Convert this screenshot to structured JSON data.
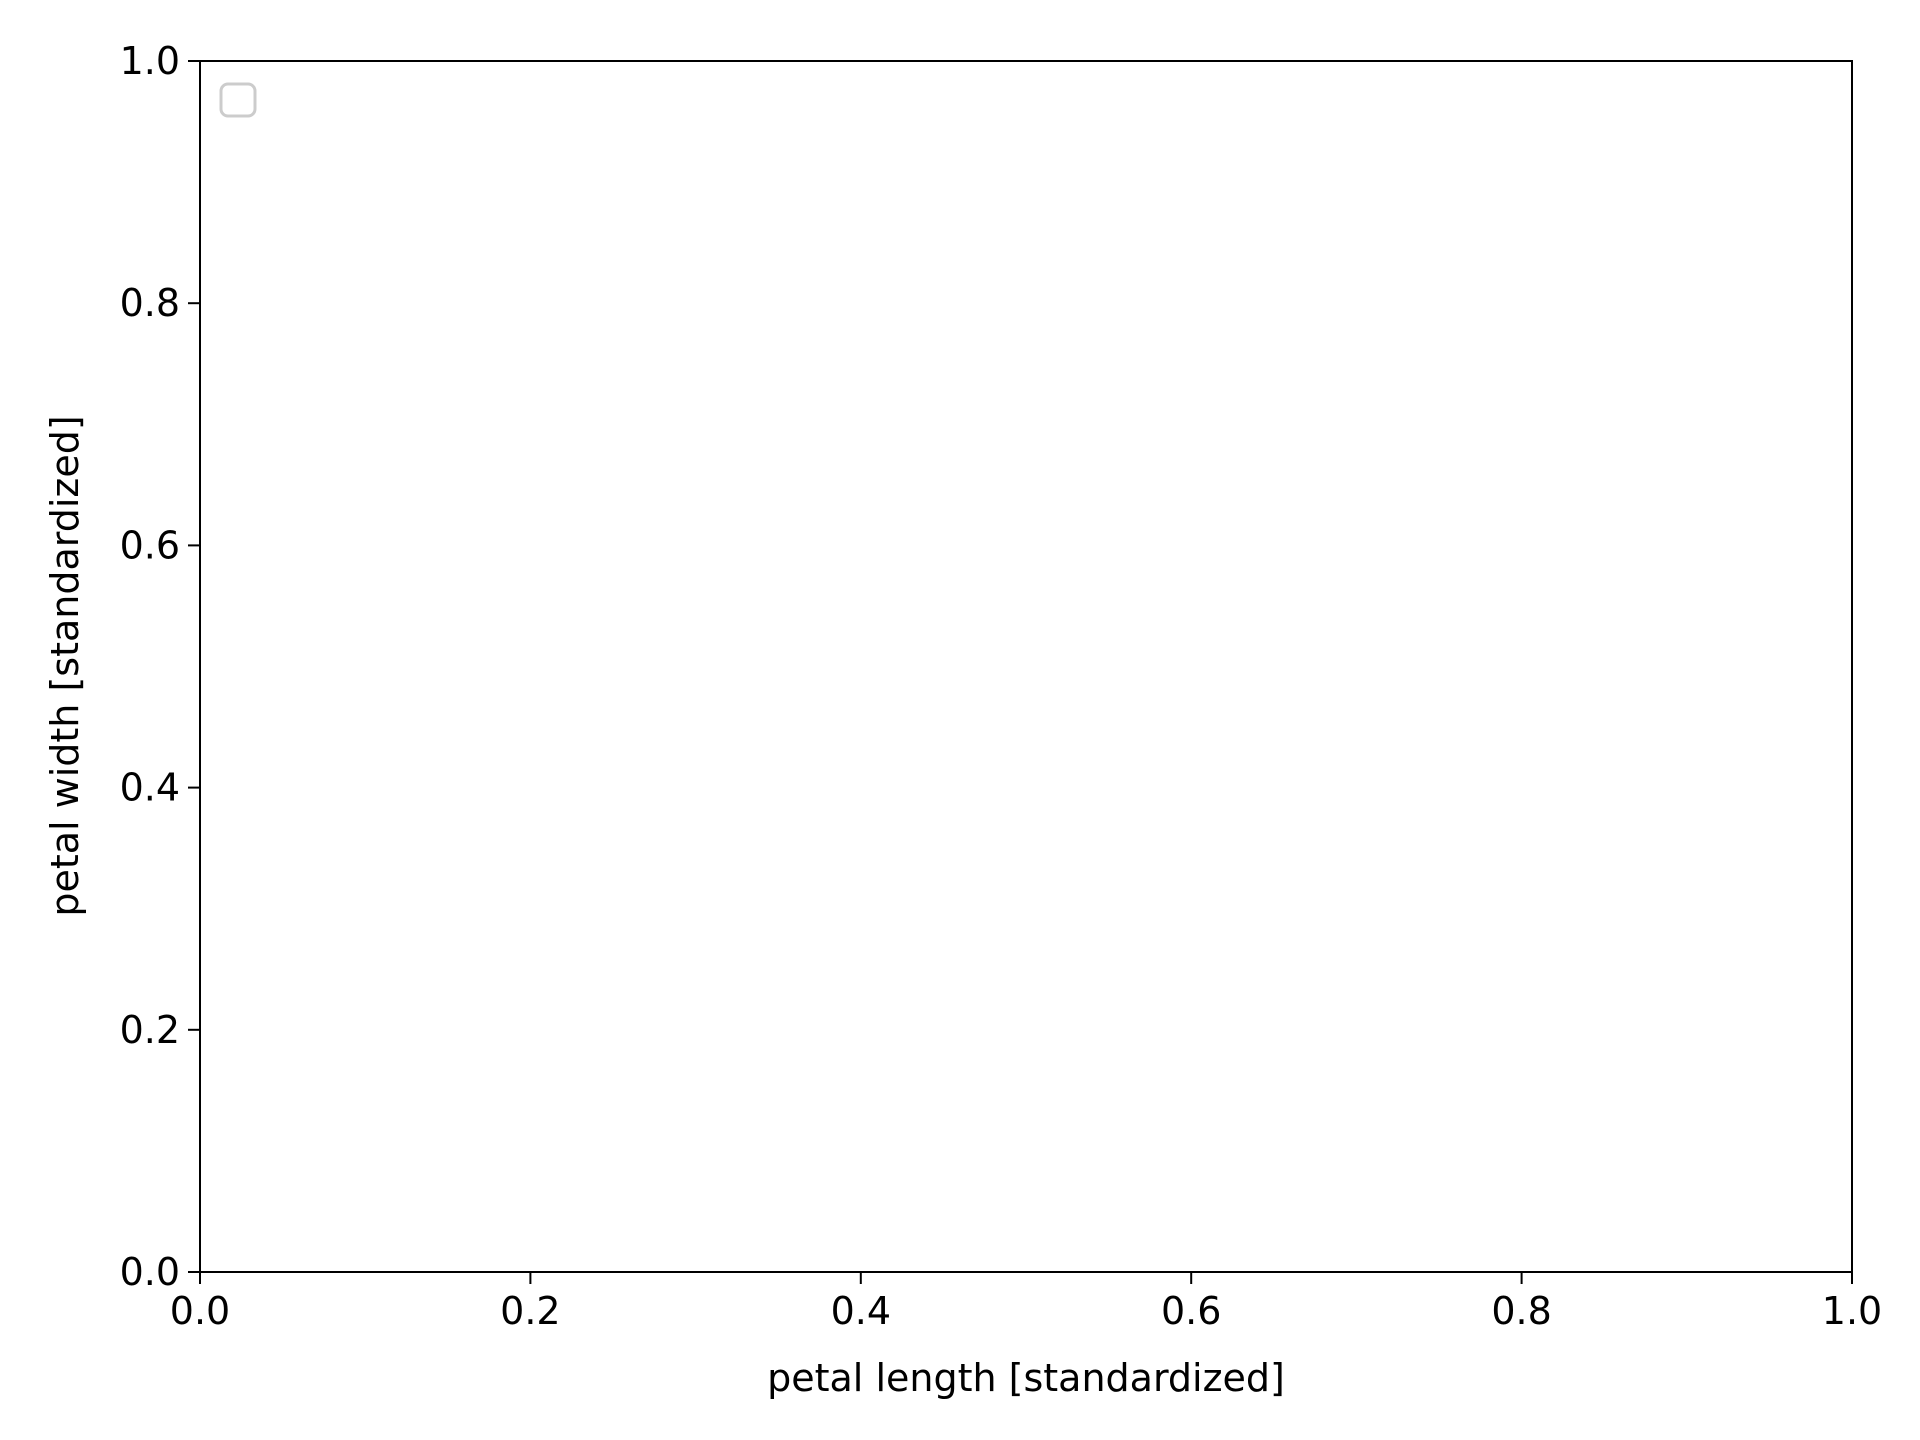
{
  "chart_data": {
    "type": "scatter",
    "title": "",
    "xlabel": "petal length [standardized]",
    "ylabel": "petal width [standardized]",
    "xlim": [
      0.0,
      1.0
    ],
    "ylim": [
      0.0,
      1.0
    ],
    "xticks": [
      "0.0",
      "0.2",
      "0.4",
      "0.6",
      "0.8",
      "1.0"
    ],
    "yticks": [
      "0.0",
      "0.2",
      "0.4",
      "0.6",
      "0.8",
      "1.0"
    ],
    "series": [],
    "legend": {
      "placement": "top-left",
      "entries": []
    },
    "grid": false,
    "colors": {
      "axis": "#000000",
      "legend_border": "#cccccc",
      "background": "#ffffff"
    }
  }
}
